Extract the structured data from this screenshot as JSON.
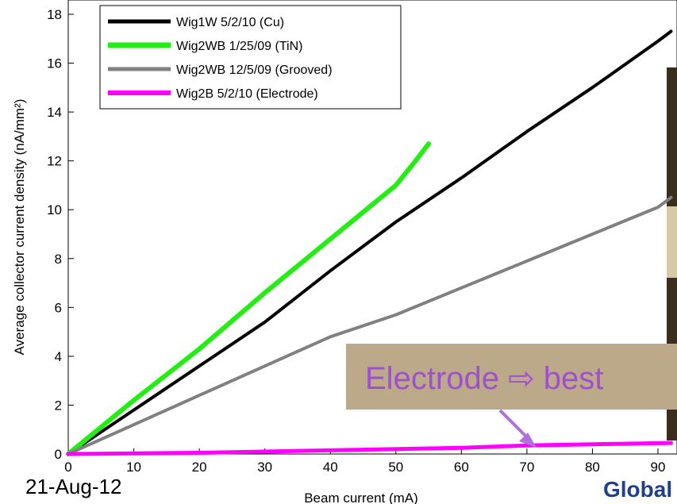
{
  "chart_data": {
    "type": "line",
    "xlabel": "Beam current (mA)",
    "ylabel": "Average collector current density (nA/mm²)",
    "xlim": [
      0,
      92
    ],
    "ylim": [
      0,
      18
    ],
    "xticks": [
      0,
      10,
      20,
      30,
      40,
      50,
      60,
      70,
      80,
      90
    ],
    "yticks": [
      0,
      2,
      4,
      6,
      8,
      10,
      12,
      14,
      16,
      18
    ],
    "legend_position": "top-left",
    "series": [
      {
        "name": "Wig1W 5/2/10 (Cu)",
        "color": "#000000",
        "x": [
          0,
          10,
          20,
          30,
          40,
          45,
          50,
          60,
          70,
          80,
          90,
          92
        ],
        "y": [
          0,
          1.8,
          3.6,
          5.4,
          7.5,
          8.5,
          9.5,
          11.3,
          13.2,
          15.0,
          16.9,
          17.3
        ]
      },
      {
        "name": "Wig2WB 1/25/09 (TiN)",
        "color": "#22ee11",
        "x": [
          0,
          10,
          20,
          30,
          40,
          45,
          50,
          53,
          55
        ],
        "y": [
          0,
          2.2,
          4.3,
          6.6,
          8.8,
          9.9,
          11.0,
          12.0,
          12.7
        ]
      },
      {
        "name": "Wig2WB 12/5/09 (Grooved)",
        "color": "#808080",
        "x": [
          0,
          10,
          20,
          30,
          40,
          50,
          60,
          70,
          80,
          90,
          92
        ],
        "y": [
          0,
          1.2,
          2.4,
          3.6,
          4.8,
          5.7,
          6.8,
          7.9,
          9.0,
          10.1,
          10.5
        ]
      },
      {
        "name": "Wig2B 5/2/10 (Electrode)",
        "color": "#ff00ff",
        "x": [
          0,
          20,
          40,
          60,
          70,
          80,
          92
        ],
        "y": [
          0,
          0.05,
          0.15,
          0.25,
          0.35,
          0.4,
          0.45
        ]
      }
    ],
    "annotation": "Electrode ⇨ best"
  },
  "colors": {
    "callout_bg": "#bba98a",
    "callout_text": "#9f4fd1",
    "brand": "#1f3f8f",
    "photo_dark": "#3a2e1e"
  },
  "footer": {
    "date": "21-Aug-12",
    "brand": "Global"
  }
}
